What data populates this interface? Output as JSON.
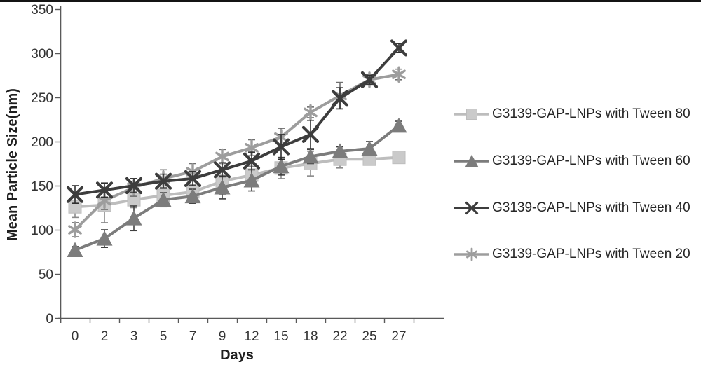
{
  "figure": {
    "background": "#ffffff",
    "top_border_color": "#141414",
    "axis_color": "#595959",
    "tick_label_color": "#333333"
  },
  "chart_data": {
    "type": "line",
    "title": "",
    "xlabel": "Days",
    "ylabel": "Mean Particle Size(nm)",
    "categories": [
      "0",
      "2",
      "3",
      "5",
      "7",
      "9",
      "12",
      "15",
      "18",
      "22",
      "25",
      "27"
    ],
    "y_axis": {
      "min": 0,
      "max": 350,
      "step": 50,
      "ticks": [
        0,
        50,
        100,
        150,
        200,
        250,
        300,
        350
      ]
    },
    "grid": false,
    "legend_position": "right",
    "error_bars": true,
    "draw_order": [
      0,
      1,
      3,
      2
    ],
    "series": [
      {
        "name": "G3139-GAP-LNPs with Tween 80",
        "marker": "square",
        "color": "#bdbdbd",
        "marker_fill": "#cacaca",
        "error_color": "#8a8a8a",
        "values": [
          126,
          128,
          134,
          139,
          143,
          155,
          162,
          170,
          175,
          180,
          180,
          182
        ],
        "errors": [
          12,
          20,
          9,
          8,
          8,
          15,
          10,
          12,
          14,
          10,
          5,
          5
        ]
      },
      {
        "name": "G3139-GAP-LNPs with Tween 60",
        "marker": "triangle",
        "color": "#7c7c7c",
        "marker_fill": "#7c7c7c",
        "error_color": "#3f3f3f",
        "values": [
          77,
          90,
          113,
          134,
          138,
          148,
          156,
          172,
          183,
          189,
          192,
          218
        ],
        "errors": [
          4,
          10,
          14,
          8,
          8,
          13,
          12,
          10,
          8,
          5,
          8,
          5
        ]
      },
      {
        "name": "G3139-GAP-LNPs with Tween 40",
        "marker": "x",
        "color": "#3d3d3d",
        "marker_fill": "#3d3d3d",
        "error_color": "#2e2e2e",
        "values": [
          140,
          145,
          150,
          155,
          158,
          168,
          178,
          194,
          208,
          249,
          270,
          306
        ],
        "errors": [
          10,
          8,
          8,
          8,
          8,
          8,
          10,
          14,
          16,
          12,
          5,
          5
        ]
      },
      {
        "name": "G3139-GAP-LNPs with Tween 20",
        "marker": "asterisk",
        "color": "#9d9d9d",
        "marker_fill": "#9d9d9d",
        "error_color": "#6f6f6f",
        "values": [
          100,
          133,
          148,
          158,
          166,
          183,
          193,
          205,
          233,
          252,
          270,
          276
        ],
        "errors": [
          8,
          10,
          10,
          10,
          9,
          8,
          9,
          10,
          6,
          15,
          6,
          6
        ]
      }
    ]
  }
}
